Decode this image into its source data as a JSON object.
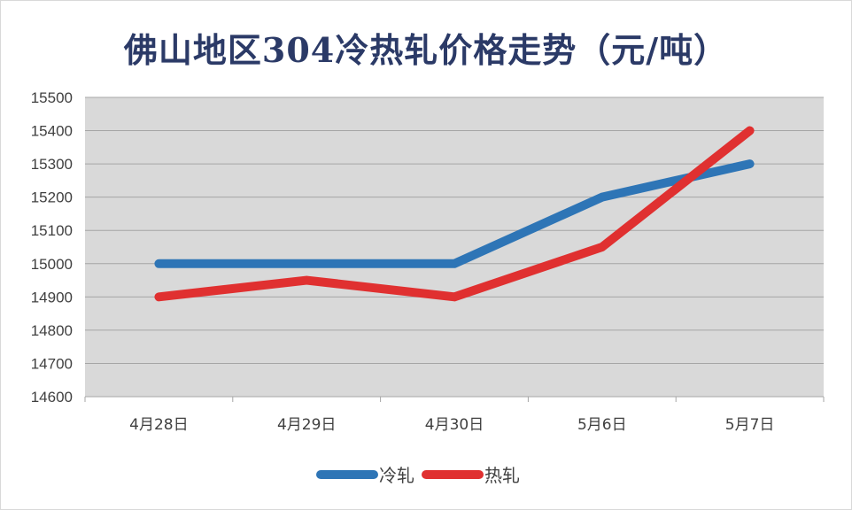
{
  "chart_data": {
    "type": "line",
    "title": "佛山地区304冷热轧价格走势（元/吨）",
    "categories": [
      "4月28日",
      "4月29日",
      "4月30日",
      "5月6日",
      "5月7日"
    ],
    "series": [
      {
        "name": "冷轧",
        "color": "#2e75b6",
        "values": [
          15000,
          15000,
          15000,
          15200,
          15300
        ]
      },
      {
        "name": "热轧",
        "color": "#e03030",
        "values": [
          14900,
          14950,
          14900,
          15050,
          15400
        ]
      }
    ],
    "ylim": [
      14600,
      15500
    ],
    "yticks": [
      15500,
      15400,
      15300,
      15200,
      15100,
      15000,
      14900,
      14800,
      14700,
      14600
    ],
    "grid": true,
    "plot_background": "#d9d9d9",
    "legend_position": "bottom"
  }
}
